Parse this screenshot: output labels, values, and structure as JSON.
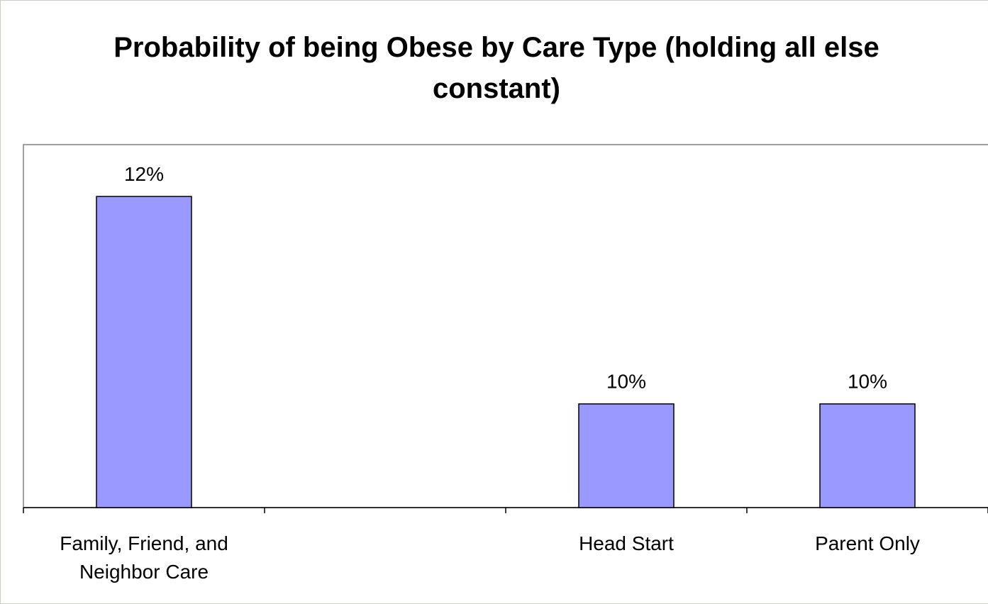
{
  "chart_data": {
    "type": "bar",
    "title": "Probability of being Obese by Care Type (holding all else constant)",
    "categories": [
      "Family, Friend, and Neighbor Care",
      null,
      "Head Start",
      "Parent Only"
    ],
    "values": [
      12,
      null,
      10,
      10
    ],
    "value_labels": [
      "12%",
      null,
      "10%",
      "10%"
    ],
    "color": "#9999ff",
    "ylim": [
      9,
      12.5
    ]
  }
}
